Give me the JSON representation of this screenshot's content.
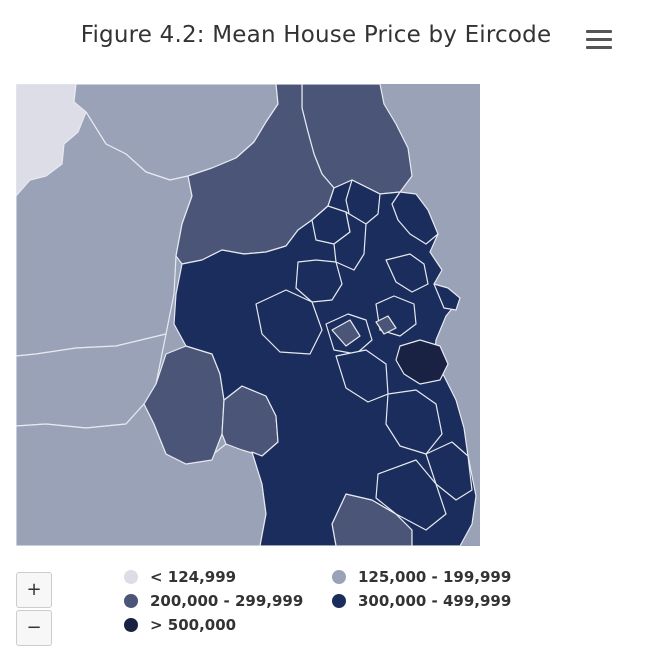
{
  "title": "Figure 4.2: Mean House Price by Eircode",
  "menu_icon": "hamburger-menu-icon",
  "zoom": {
    "in_label": "+",
    "out_label": "−"
  },
  "legend": [
    {
      "label": "< 124,999",
      "color": "#dcdde6"
    },
    {
      "label": "125,000 - 199,999",
      "color": "#9aa2b8"
    },
    {
      "label": "200,000 - 299,999",
      "color": "#4a5578"
    },
    {
      "label": "300,000 - 499,999",
      "color": "#1b2d5c"
    },
    {
      "label": "> 500,000",
      "color": "#1a2244"
    }
  ]
}
